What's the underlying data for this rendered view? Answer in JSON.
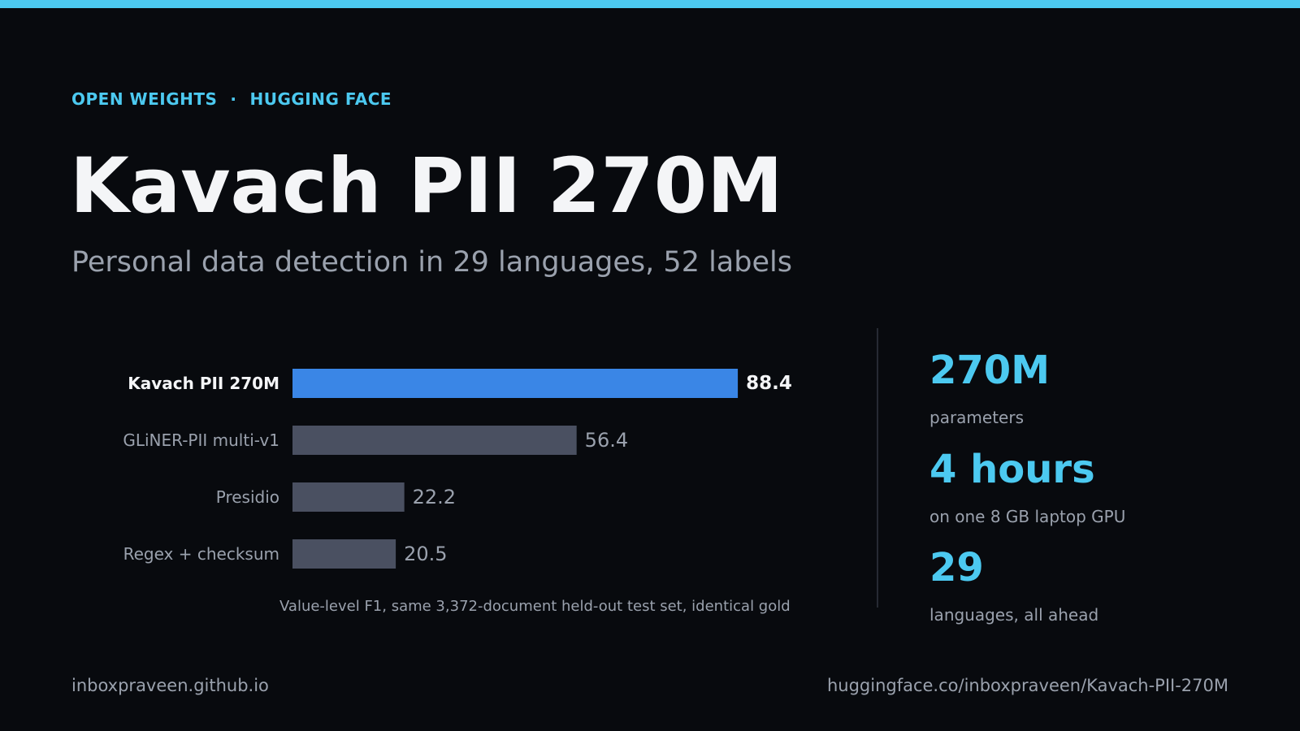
{
  "header": {
    "eyebrow_left": "OPEN WEIGHTS",
    "eyebrow_sep": "·",
    "eyebrow_right": "HUGGING FACE",
    "title": "Kavach PII 270M",
    "subtitle": "Personal data detection in 29 languages, 52 labels"
  },
  "chart_data": {
    "type": "bar",
    "orientation": "horizontal",
    "categories": [
      "Kavach PII 270M",
      "GLiNER-PII multi-v1",
      "Presidio",
      "Regex + checksum"
    ],
    "values": [
      88.4,
      56.4,
      22.2,
      20.5
    ],
    "value_labels": [
      "88.4",
      "56.4",
      "22.2",
      "20.5"
    ],
    "highlight_index": 0,
    "colors": {
      "highlight": "#3a86e6",
      "other": "#4a5061"
    },
    "caption": "Value-level F1, same 3,372-document held-out test set, identical gold",
    "xlim": [
      0,
      100
    ]
  },
  "stats": [
    {
      "value": "270M",
      "label": "parameters"
    },
    {
      "value": "4 hours",
      "label": "on one 8 GB laptop GPU"
    },
    {
      "value": "29",
      "label": "languages, all ahead"
    }
  ],
  "footer": {
    "left": "inboxpraveen.github.io",
    "right": "huggingface.co/inboxpraveen/Kavach-PII-270M"
  },
  "theme": {
    "accent": "#4cc9f0",
    "background": "#080a0e"
  }
}
